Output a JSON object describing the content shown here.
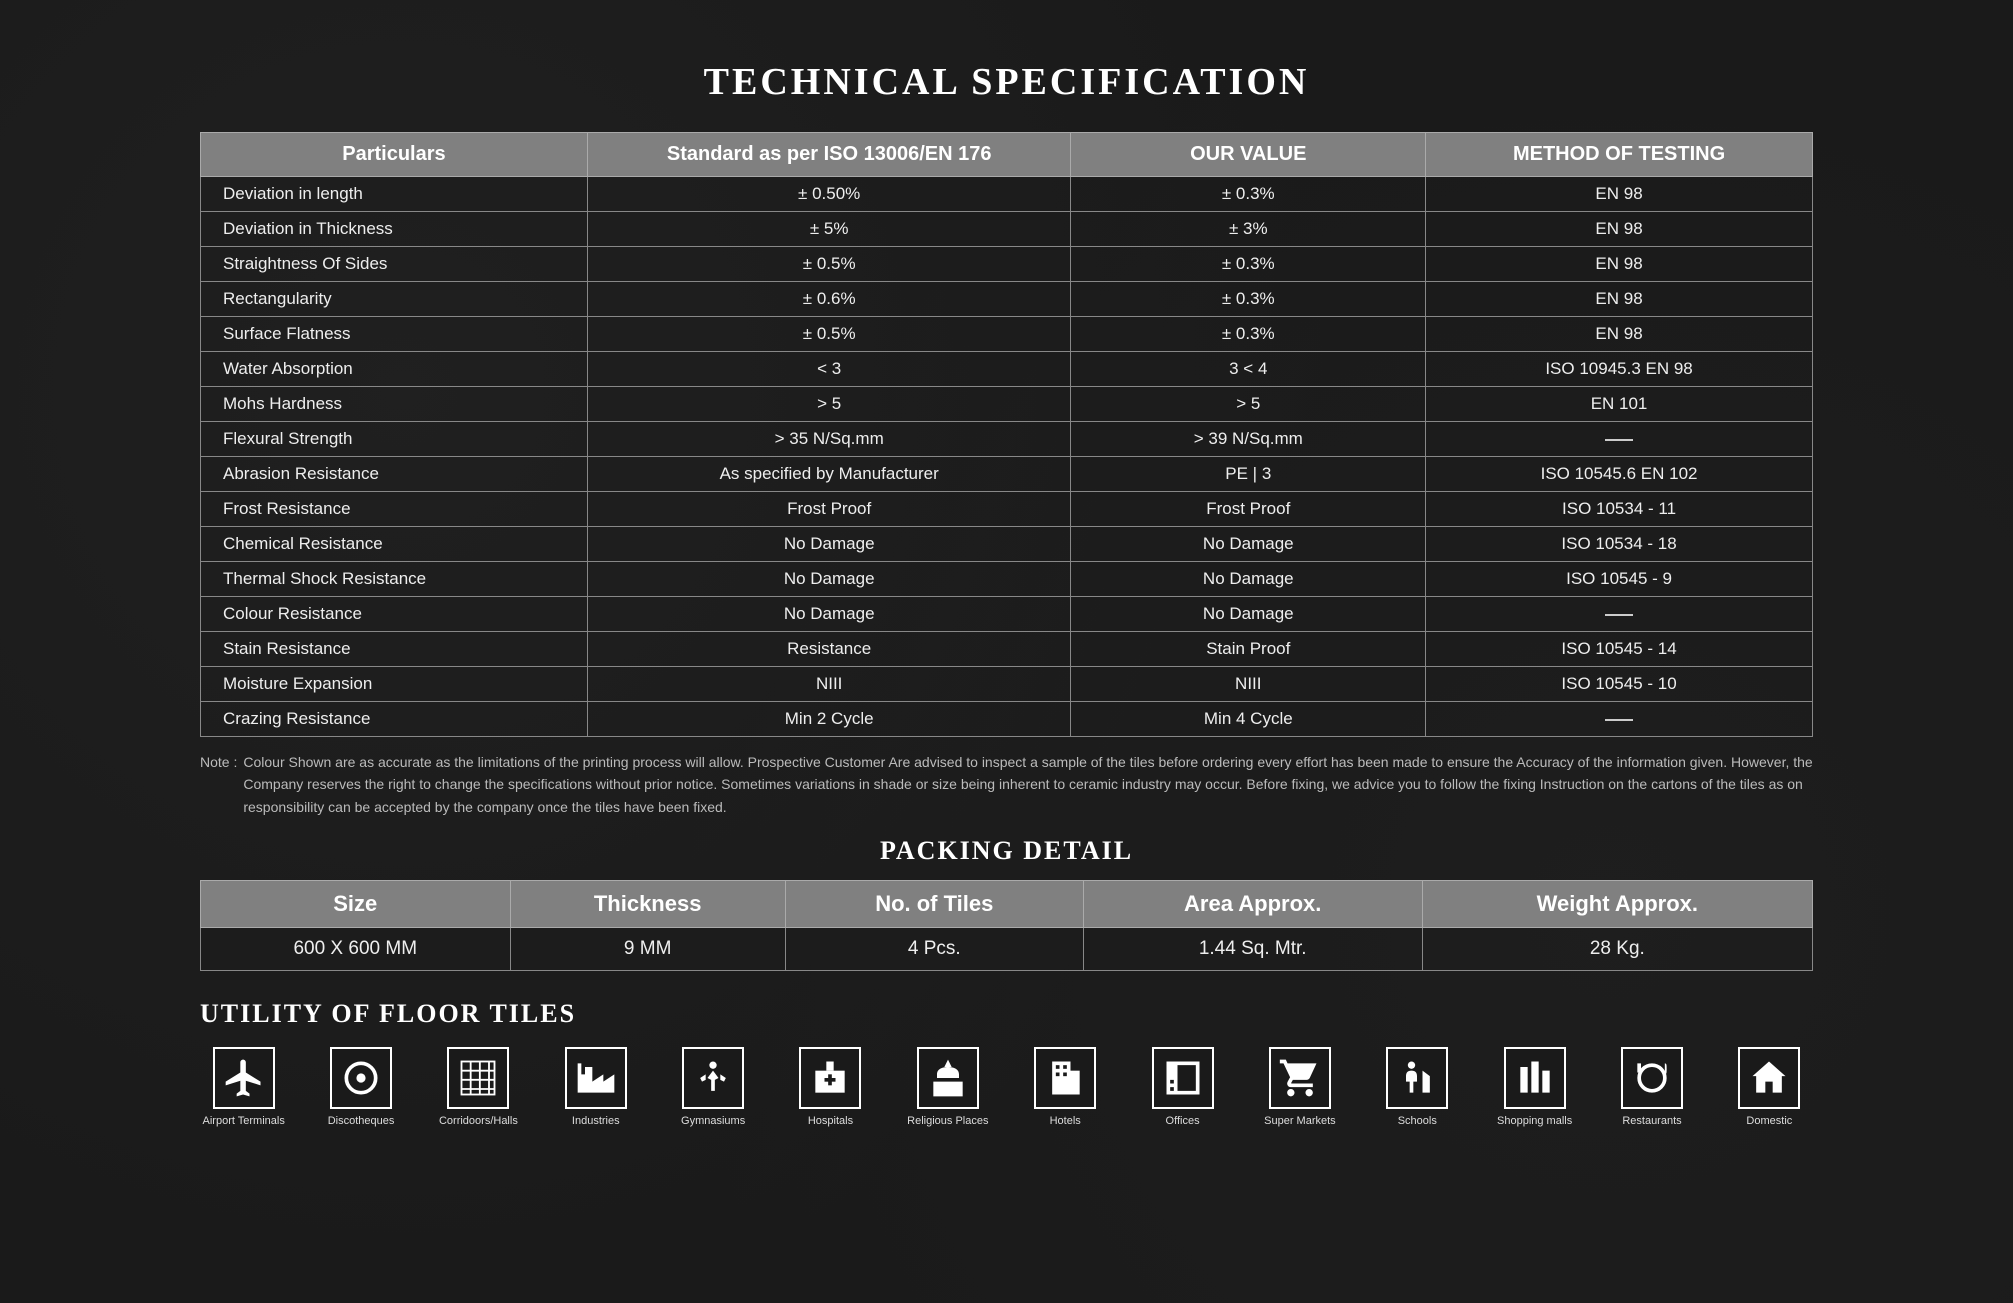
{
  "title": "TECHNICAL SPECIFICATION",
  "spec_table": {
    "columns": [
      "Particulars",
      "Standard as per ISO 13006/EN 176",
      "OUR VALUE",
      "METHOD OF TESTING"
    ],
    "rows": [
      [
        "Deviation in length",
        "± 0.50%",
        "± 0.3%",
        "EN 98"
      ],
      [
        "Deviation in Thickness",
        "± 5%",
        "± 3%",
        "EN 98"
      ],
      [
        "Straightness Of Sides",
        "± 0.5%",
        "± 0.3%",
        "EN 98"
      ],
      [
        "Rectangularity",
        "± 0.6%",
        "± 0.3%",
        "EN 98"
      ],
      [
        "Surface Flatness",
        "± 0.5%",
        "± 0.3%",
        "EN 98"
      ],
      [
        "Water Absorption",
        "< 3",
        "3 < 4",
        "ISO 10945.3 EN 98"
      ],
      [
        "Mohs Hardness",
        "> 5",
        "> 5",
        "EN 101"
      ],
      [
        "Flexural Strength",
        "> 35 N/Sq.mm",
        "> 39 N/Sq.mm",
        "—"
      ],
      [
        "Abrasion Resistance",
        "As specified by Manufacturer",
        "PE | 3",
        "ISO 10545.6 EN 102"
      ],
      [
        "Frost Resistance",
        "Frost Proof",
        "Frost Proof",
        "ISO 10534 - 11"
      ],
      [
        "Chemical Resistance",
        "No Damage",
        "No Damage",
        "ISO 10534 - 18"
      ],
      [
        "Thermal Shock Resistance",
        "No Damage",
        "No Damage",
        "ISO 10545 - 9"
      ],
      [
        "Colour Resistance",
        "No Damage",
        "No Damage",
        "—"
      ],
      [
        "Stain Resistance",
        "Resistance",
        "Stain Proof",
        "ISO 10545 - 14"
      ],
      [
        "Moisture Expansion",
        "NIII",
        "NIII",
        "ISO 10545 - 10"
      ],
      [
        "Crazing Resistance",
        "Min 2 Cycle",
        "Min 4 Cycle",
        "—"
      ]
    ]
  },
  "note_label": "Note :",
  "note_body": "Colour Shown are as accurate as the limitations of the printing process will allow. Prospective Customer Are advised to inspect a sample of the tiles before ordering every effort has been made to ensure the Accuracy of the information given. However, the Company reserves the right to change the specifications without prior notice. Sometimes variations in shade or size being inherent to ceramic industry may occur. Before fixing, we advice you to follow the fixing Instruction on the cartons of the tiles as on responsibility can be accepted by the company once the tiles have been fixed.",
  "packing_title": "PACKING DETAIL",
  "pack_table": {
    "columns": [
      "Size",
      "Thickness",
      "No. of Tiles",
      "Area Approx.",
      "Weight Approx."
    ],
    "rows": [
      [
        "600 X 600 MM",
        "9 MM",
        "4 Pcs.",
        "1.44 Sq. Mtr.",
        "28 Kg."
      ]
    ]
  },
  "utility_title": "UTILITY OF FLOOR TILES",
  "icons": [
    {
      "name": "airport-terminals-icon",
      "label": "Airport Terminals"
    },
    {
      "name": "discotheques-icon",
      "label": "Discotheques"
    },
    {
      "name": "corridors-halls-icon",
      "label": "Corridoors/Halls"
    },
    {
      "name": "industries-icon",
      "label": "Industries"
    },
    {
      "name": "gymnasiums-icon",
      "label": "Gymnasiums"
    },
    {
      "name": "hospitals-icon",
      "label": "Hospitals"
    },
    {
      "name": "religious-places-icon",
      "label": "Religious Places"
    },
    {
      "name": "hotels-icon",
      "label": "Hotels"
    },
    {
      "name": "offices-icon",
      "label": "Offices"
    },
    {
      "name": "super-markets-icon",
      "label": "Super Markets"
    },
    {
      "name": "schools-icon",
      "label": "Schools"
    },
    {
      "name": "shopping-malls-icon",
      "label": "Shopping malls"
    },
    {
      "name": "restaurants-icon",
      "label": "Restaurants"
    },
    {
      "name": "domestic-icon",
      "label": "Domestic"
    }
  ]
}
